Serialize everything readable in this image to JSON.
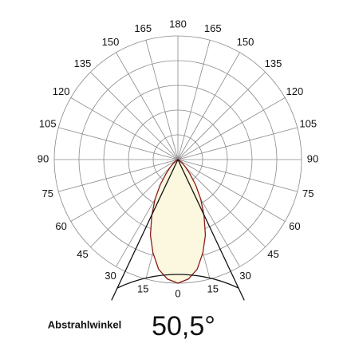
{
  "chart_data": {
    "type": "polar",
    "angle_labels": [
      0,
      15,
      30,
      45,
      60,
      75,
      90,
      105,
      120,
      135,
      150,
      165,
      180
    ],
    "angles": [
      -90,
      -60,
      -50,
      -45,
      -40,
      -35,
      -30,
      -25,
      -20,
      -15,
      -10,
      -5,
      0,
      5,
      10,
      15,
      20,
      25,
      30,
      35,
      40,
      45,
      50,
      60,
      90
    ],
    "values": [
      0,
      1,
      5,
      9,
      15,
      25,
      37,
      50,
      65,
      78,
      90,
      97,
      100,
      97,
      90,
      78,
      65,
      50,
      37,
      25,
      15,
      9,
      5,
      1,
      0
    ],
    "ylim": [
      0,
      100
    ],
    "color": "#8b1a1a",
    "fill": "#fcf7df",
    "beam_label": "Abstrahlwinkel",
    "beam_angle": {
      "value": 50.5,
      "label": "50,5°"
    }
  }
}
